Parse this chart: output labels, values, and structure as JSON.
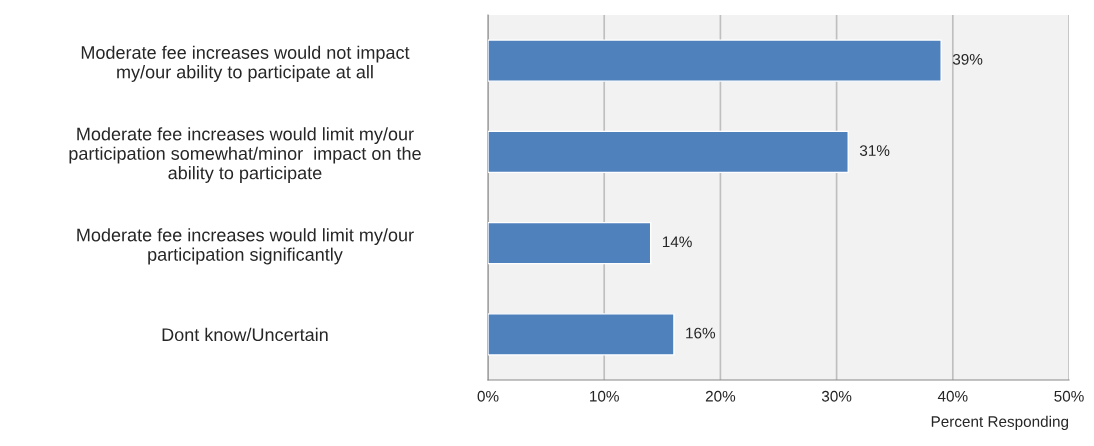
{
  "chart_data": {
    "type": "bar",
    "orientation": "horizontal",
    "xlabel": "Percent Responding",
    "categories": [
      "Moderate fee increases would not impact\nmy/our ability to participate at all",
      "Moderate fee increases would limit my/our\nparticipation somewhat/minor  impact on the\nability to participate",
      "Moderate fee increases would limit my/our\nparticipation significantly",
      "Dont know/Uncertain"
    ],
    "values": [
      39,
      31,
      14,
      16
    ],
    "color": "#4f81bd",
    "value_labels": [
      "39%",
      "31%",
      "14%",
      "16%"
    ],
    "xlim": [
      0,
      50
    ],
    "xticks": [
      {
        "value": 0,
        "label": "0%"
      },
      {
        "value": 10,
        "label": "10%"
      },
      {
        "value": 20,
        "label": "20%"
      },
      {
        "value": 30,
        "label": "30%"
      },
      {
        "value": 40,
        "label": "40%"
      },
      {
        "value": 50,
        "label": "50%"
      }
    ],
    "grid": "x"
  }
}
